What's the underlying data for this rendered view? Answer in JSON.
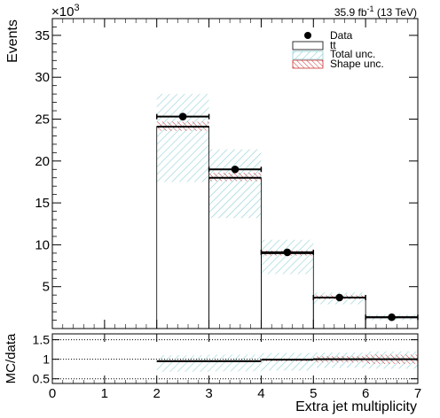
{
  "header": {
    "exponent_base": "×10",
    "exponent_power": "3",
    "lumi_main": "35.9 fb",
    "lumi_sup": "-1",
    "lumi_energy": " (13 TeV)"
  },
  "legend": {
    "data": "Data",
    "mc": "tt",
    "total_unc": "Total unc.",
    "shape_unc": "Shape unc."
  },
  "colors": {
    "total_unc": "#8ecfd6",
    "shape_unc": "#cc3333",
    "data": "#000000",
    "mc_fill": "#ffffff"
  },
  "chart_data": [
    {
      "type": "bar",
      "title": "",
      "xlabel": "",
      "ylabel": "Events",
      "y_multiplier": "×10^3",
      "x_bin_edges": [
        2,
        3,
        4,
        5,
        6,
        7
      ],
      "xlim": [
        0,
        7
      ],
      "ylim": [
        0,
        37
      ],
      "yticks": [
        5,
        10,
        15,
        20,
        25,
        30,
        35
      ],
      "ytick_labels": [
        "5",
        "10",
        "15",
        "20",
        "25",
        "30",
        "35"
      ],
      "legend_position": "top-right",
      "series": [
        {
          "name": "Data",
          "values": [
            25.3,
            19.0,
            9.1,
            3.7,
            1.35
          ]
        },
        {
          "name": "tt",
          "values": [
            24.1,
            18.0,
            9.0,
            3.7,
            1.35
          ]
        }
      ],
      "bands": [
        {
          "name": "Total unc.",
          "low": [
            17.5,
            13.2,
            6.5,
            2.9,
            1.0
          ],
          "high": [
            28.0,
            21.4,
            10.6,
            4.3,
            1.65
          ]
        },
        {
          "name": "Shape unc.",
          "low": [
            23.6,
            17.6,
            8.7,
            3.5,
            1.25
          ],
          "high": [
            24.7,
            18.6,
            9.3,
            4.0,
            1.5
          ]
        }
      ]
    },
    {
      "type": "line",
      "title": "",
      "xlabel": "Extra jet multiplicity",
      "ylabel": "MC/data",
      "xlim": [
        0,
        7
      ],
      "ylim": [
        0.38,
        1.65
      ],
      "xticks": [
        0,
        1,
        2,
        3,
        4,
        5,
        6,
        7
      ],
      "xtick_labels": [
        "0",
        "1",
        "2",
        "3",
        "4",
        "5",
        "6",
        "7"
      ],
      "yticks": [
        0.5,
        1,
        1.5
      ],
      "ytick_labels": [
        "0.5",
        "1",
        "1.5"
      ],
      "reference_lines": [
        0.5,
        1.0,
        1.5
      ],
      "series": [
        {
          "name": "MC/data",
          "values": [
            0.95,
            0.95,
            0.99,
            1.0,
            1.0
          ]
        }
      ],
      "bands": [
        {
          "name": "Total unc.",
          "low": [
            0.68,
            0.69,
            0.71,
            0.78,
            0.76
          ],
          "high": [
            1.1,
            1.12,
            1.16,
            1.17,
            1.2
          ]
        },
        {
          "name": "Shape unc.",
          "low": [
            0.93,
            0.93,
            0.95,
            0.92,
            0.88
          ],
          "high": [
            0.98,
            0.98,
            1.02,
            1.08,
            1.12
          ]
        }
      ]
    }
  ]
}
